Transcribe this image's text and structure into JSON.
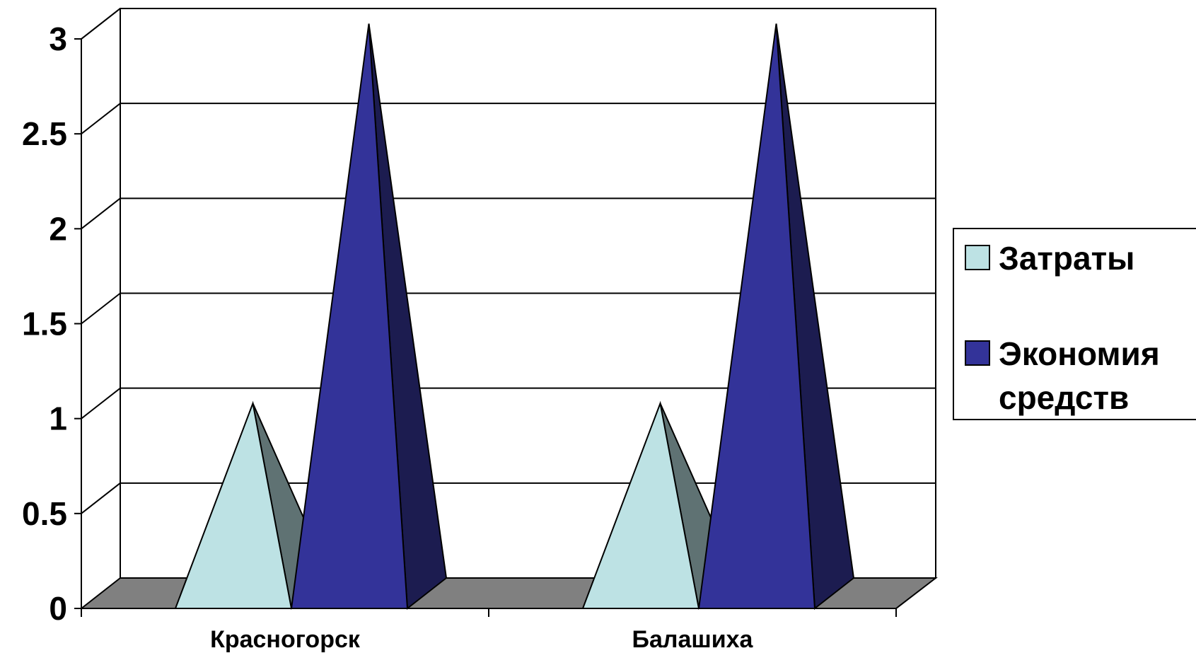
{
  "chart_data": {
    "type": "bar",
    "subtype": "3d-pyramid",
    "title": "",
    "xlabel": "",
    "ylabel": "",
    "categories": [
      "Красногорск",
      "Балашиха"
    ],
    "series": [
      {
        "name": "Затраты",
        "values": [
          1,
          1
        ],
        "color": "#bde2e4",
        "shade": "#5f7273"
      },
      {
        "name": "Экономия средств",
        "values": [
          3,
          3
        ],
        "color": "#333399",
        "shade": "#1c1c50"
      }
    ],
    "ylim": [
      0,
      3
    ],
    "yticks": [
      "0",
      "0.5",
      "1",
      "1.5",
      "2",
      "2.5",
      "3"
    ],
    "ytick_values": [
      0,
      0.5,
      1,
      1.5,
      2,
      2.5,
      3
    ],
    "grid": true,
    "floor_color": "#808080",
    "legend": {
      "position": "right",
      "items": [
        {
          "lines": [
            "Затраты"
          ]
        },
        {
          "lines": [
            "Экономия",
            "средств"
          ]
        }
      ]
    }
  }
}
